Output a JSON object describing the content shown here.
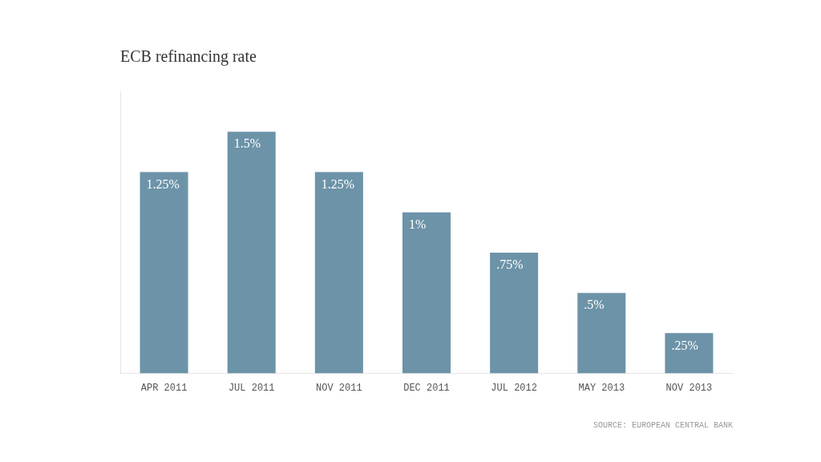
{
  "chart_data": {
    "type": "bar",
    "title": "ECB refinancing rate",
    "categories": [
      "APR 2011",
      "JUL 2011",
      "NOV 2011",
      "DEC 2011",
      "JUL 2012",
      "MAY 2013",
      "NOV 2013"
    ],
    "values": [
      1.25,
      1.5,
      1.25,
      1.0,
      0.75,
      0.5,
      0.25
    ],
    "value_labels": [
      "1.25%",
      "1.5%",
      "1.25%",
      "1%",
      ".75%",
      ".5%",
      ".25%"
    ],
    "data_labels": true,
    "color": "#6d93a8",
    "ylim": [
      0,
      1.75
    ],
    "tick_labels": "x",
    "grid": false,
    "annotations": [
      "SOURCE: EUROPEAN CENTRAL BANK"
    ]
  }
}
